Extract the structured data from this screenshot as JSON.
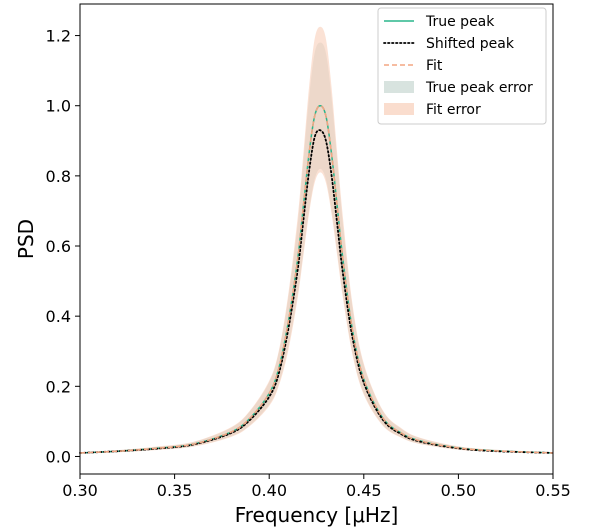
{
  "chart_data": {
    "type": "line",
    "title": "",
    "xlabel": "Frequency [μHz]",
    "ylabel": "PSD",
    "xlim": [
      0.3,
      0.55
    ],
    "ylim": [
      -0.05,
      1.29
    ],
    "xticks": [
      "0.30",
      "0.35",
      "0.40",
      "0.45",
      "0.50",
      "0.55"
    ],
    "xtick_values": [
      0.3,
      0.35,
      0.4,
      0.45,
      0.5,
      0.55
    ],
    "yticks": [
      "0.0",
      "0.2",
      "0.4",
      "0.6",
      "0.8",
      "1.0",
      "1.2"
    ],
    "ytick_values": [
      0.0,
      0.2,
      0.4,
      0.6,
      0.8,
      1.0,
      1.2
    ],
    "grid": false,
    "legend_position": "top-right",
    "x": [
      0.3,
      0.32,
      0.34,
      0.36,
      0.38,
      0.39,
      0.4,
      0.405,
      0.41,
      0.415,
      0.418,
      0.421,
      0.424,
      0.427,
      0.43,
      0.433,
      0.436,
      0.439,
      0.444,
      0.45,
      0.46,
      0.47,
      0.48,
      0.5,
      0.52,
      0.55
    ],
    "series": [
      {
        "name": "True peak",
        "style": "solid",
        "color": "#2ab68c",
        "values": [
          0.01,
          0.015,
          0.023,
          0.035,
          0.07,
          0.11,
          0.18,
          0.25,
          0.38,
          0.56,
          0.71,
          0.86,
          0.97,
          1.0,
          0.97,
          0.86,
          0.71,
          0.56,
          0.36,
          0.22,
          0.11,
          0.066,
          0.044,
          0.024,
          0.016,
          0.01
        ]
      },
      {
        "name": "Shifted peak",
        "style": "dotted",
        "color": "#000000",
        "values": [
          0.01,
          0.015,
          0.022,
          0.034,
          0.067,
          0.105,
          0.17,
          0.235,
          0.36,
          0.53,
          0.67,
          0.81,
          0.91,
          0.93,
          0.9,
          0.8,
          0.66,
          0.52,
          0.34,
          0.21,
          0.105,
          0.063,
          0.042,
          0.023,
          0.015,
          0.01
        ]
      },
      {
        "name": "Fit",
        "style": "dashed",
        "color": "#f4a582",
        "values": [
          0.01,
          0.015,
          0.023,
          0.035,
          0.07,
          0.11,
          0.18,
          0.25,
          0.38,
          0.56,
          0.71,
          0.86,
          0.97,
          1.0,
          0.97,
          0.86,
          0.71,
          0.56,
          0.36,
          0.22,
          0.11,
          0.066,
          0.044,
          0.024,
          0.016,
          0.01
        ]
      }
    ],
    "bands": [
      {
        "name": "True peak error",
        "color": "#a9c1b8",
        "opacity": 0.35,
        "lower": [
          0.008,
          0.012,
          0.019,
          0.029,
          0.058,
          0.09,
          0.148,
          0.205,
          0.31,
          0.46,
          0.58,
          0.7,
          0.79,
          0.82,
          0.79,
          0.7,
          0.58,
          0.46,
          0.295,
          0.18,
          0.09,
          0.054,
          0.036,
          0.02,
          0.013,
          0.008
        ],
        "upper": [
          0.012,
          0.018,
          0.027,
          0.041,
          0.082,
          0.13,
          0.212,
          0.295,
          0.45,
          0.66,
          0.84,
          1.02,
          1.15,
          1.18,
          1.15,
          1.02,
          0.84,
          0.66,
          0.425,
          0.26,
          0.13,
          0.078,
          0.052,
          0.028,
          0.019,
          0.012
        ]
      },
      {
        "name": "Fit error",
        "color": "#f8cbb3",
        "opacity": 0.55,
        "lower": [
          0.008,
          0.012,
          0.018,
          0.028,
          0.056,
          0.088,
          0.144,
          0.2,
          0.3,
          0.45,
          0.57,
          0.69,
          0.78,
          0.81,
          0.78,
          0.69,
          0.57,
          0.45,
          0.29,
          0.176,
          0.088,
          0.053,
          0.035,
          0.019,
          0.013,
          0.008
        ],
        "upper": [
          0.012,
          0.018,
          0.028,
          0.042,
          0.084,
          0.132,
          0.216,
          0.3,
          0.46,
          0.68,
          0.86,
          1.05,
          1.19,
          1.225,
          1.19,
          1.05,
          0.86,
          0.68,
          0.435,
          0.265,
          0.132,
          0.08,
          0.053,
          0.029,
          0.019,
          0.012
        ]
      }
    ]
  }
}
